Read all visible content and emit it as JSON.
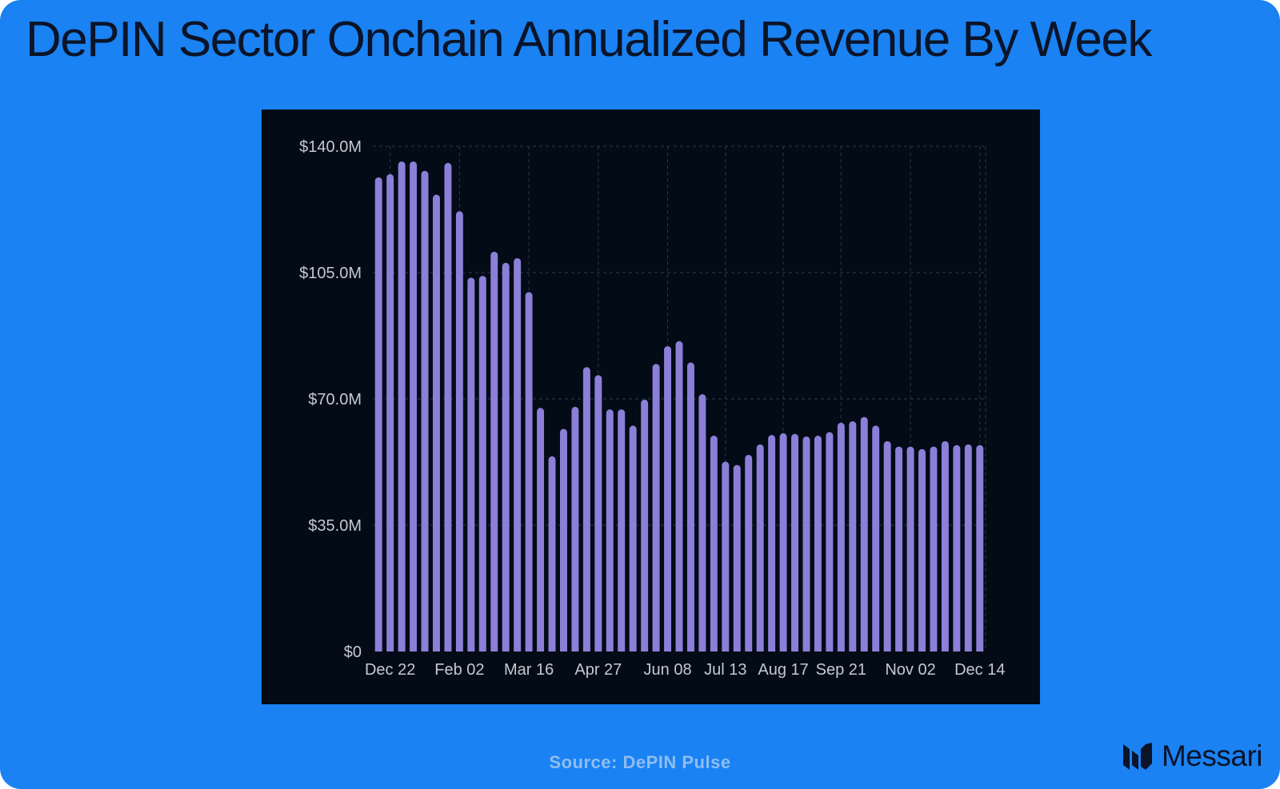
{
  "page": {
    "title": "DePIN Sector Onchain Annualized Revenue By Week",
    "source": "Source: DePIN Pulse",
    "brand": "Messari",
    "colors": {
      "background": "#1a82f2",
      "panel": "#030b16",
      "bar": "#8b7fd8",
      "grid": "#2b3b4d",
      "tick_text": "#c4c9d1"
    }
  },
  "chart_data": {
    "type": "bar",
    "title": "DePIN Sector Onchain Annualized Revenue By Week",
    "xlabel": "",
    "ylabel": "",
    "ylim": [
      0,
      140
    ],
    "y_unit": "$M",
    "y_ticks": [
      {
        "value": 0,
        "label": "$0"
      },
      {
        "value": 35,
        "label": "$35.0M"
      },
      {
        "value": 70,
        "label": "$70.0M"
      },
      {
        "value": 105,
        "label": "$105.0M"
      },
      {
        "value": 140,
        "label": "$140.0M"
      }
    ],
    "x_ticks": [
      {
        "index": 1,
        "label": "Dec 22"
      },
      {
        "index": 7,
        "label": "Feb 02"
      },
      {
        "index": 13,
        "label": "Mar 16"
      },
      {
        "index": 19,
        "label": "Apr 27"
      },
      {
        "index": 25,
        "label": "Jun 08"
      },
      {
        "index": 30,
        "label": "Jul 13"
      },
      {
        "index": 35,
        "label": "Aug 17"
      },
      {
        "index": 40,
        "label": "Sep 21"
      },
      {
        "index": 46,
        "label": "Nov 02"
      },
      {
        "index": 52,
        "label": "Dec 14"
      }
    ],
    "grid": true,
    "legend": "none",
    "categories": [
      "Dec 15",
      "Dec 22",
      "Dec 29",
      "Jan 05",
      "Jan 12",
      "Jan 19",
      "Jan 26",
      "Feb 02",
      "Feb 09",
      "Feb 16",
      "Feb 23",
      "Mar 02",
      "Mar 09",
      "Mar 16",
      "Mar 23",
      "Mar 30",
      "Apr 06",
      "Apr 13",
      "Apr 20",
      "Apr 27",
      "May 04",
      "May 11",
      "May 18",
      "May 25",
      "Jun 01",
      "Jun 08",
      "Jun 15",
      "Jun 22",
      "Jun 29",
      "Jul 06",
      "Jul 13",
      "Jul 20",
      "Jul 27",
      "Aug 03",
      "Aug 10",
      "Aug 17",
      "Aug 24",
      "Aug 31",
      "Sep 07",
      "Sep 14",
      "Sep 21",
      "Sep 28",
      "Oct 05",
      "Oct 12",
      "Oct 19",
      "Oct 26",
      "Nov 02",
      "Nov 09",
      "Nov 16",
      "Nov 23",
      "Nov 30",
      "Dec 07",
      "Dec 14"
    ],
    "values": [
      131.4,
      132.3,
      135.8,
      135.8,
      133.2,
      126.6,
      135.4,
      122.0,
      103.6,
      104.1,
      110.8,
      107.7,
      109.0,
      99.6,
      67.5,
      54.1,
      61.7,
      67.8,
      78.8,
      76.6,
      67.1,
      67.1,
      62.6,
      69.8,
      79.7,
      84.6,
      86.0,
      80.1,
      71.3,
      59.8,
      52.6,
      51.7,
      54.5,
      57.4,
      60.0,
      60.5,
      60.3,
      59.6,
      59.8,
      60.8,
      63.4,
      63.8,
      65.0,
      62.6,
      58.3,
      56.8,
      56.8,
      56.1,
      56.8,
      58.3,
      57.2,
      57.4,
      57.2
    ]
  }
}
